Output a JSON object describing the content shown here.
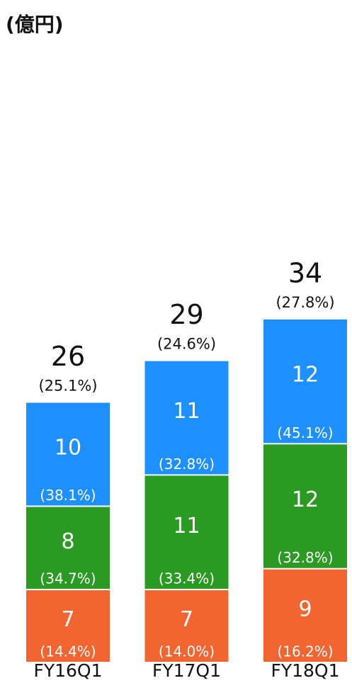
{
  "chart_data": {
    "type": "stacked_bar",
    "title": "(億円)",
    "categories": [
      "FY16Q1",
      "FY17Q1",
      "FY18Q1"
    ],
    "series": [
      {
        "color": "#f26430",
        "values": [
          7,
          7,
          9
        ],
        "value_shares": [
          "(14.4%)",
          "(14.0%)",
          "(16.2%)"
        ]
      },
      {
        "color": "#2a9a22",
        "values": [
          8,
          11,
          12
        ],
        "value_shares": [
          "(34.7%)",
          "(33.4%)",
          "(32.8%)"
        ]
      },
      {
        "color": "#1e8fff",
        "values": [
          10,
          11,
          12
        ],
        "value_shares": [
          "(38.1%)",
          "(32.8%)",
          "(45.1%)"
        ]
      }
    ],
    "totals": [
      26,
      29,
      34
    ],
    "total_shares": [
      "(25.1%)",
      "(24.6%)",
      "(27.8%)"
    ]
  }
}
